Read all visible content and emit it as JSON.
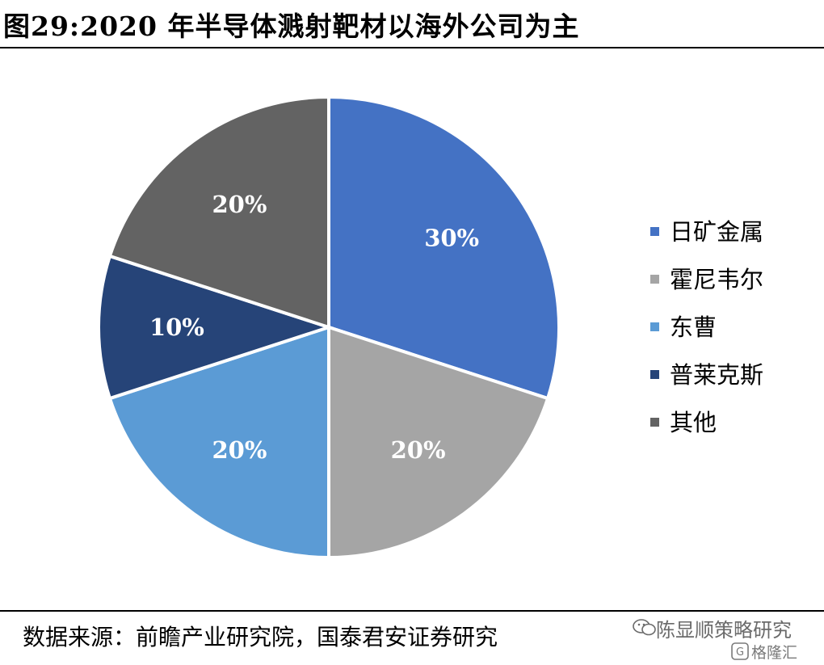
{
  "header": {
    "title": "图29:2020 年半导体溅射靶材以海外公司为主"
  },
  "footer": {
    "source": "数据来源：前瞻产业研究院，国泰君安证券研究"
  },
  "watermark": {
    "line1": "陈显顺策略研究",
    "line2": "格隆汇"
  },
  "icons": {
    "watermark_logo": "wechat-icon",
    "platform_logo": "gelonghui-icon"
  },
  "chart_data": {
    "type": "pie",
    "title": "",
    "categories": [
      "日矿金属",
      "霍尼韦尔",
      "东曹",
      "普莱克斯",
      "其他"
    ],
    "values": [
      30,
      20,
      20,
      10,
      20
    ],
    "labels": [
      "30%",
      "20%",
      "20%",
      "10%",
      "20%"
    ],
    "colors": [
      "#4472C4",
      "#A5A5A5",
      "#5B9BD5",
      "#264478",
      "#636363"
    ],
    "start_angle": "12 o'clock",
    "direction": "clockwise",
    "legend_position": "right"
  }
}
